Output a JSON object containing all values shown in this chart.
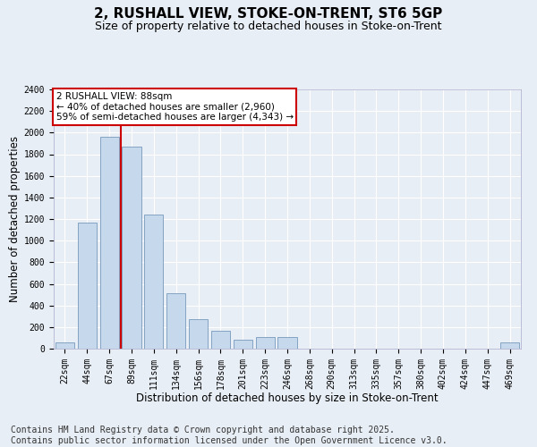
{
  "title1": "2, RUSHALL VIEW, STOKE-ON-TRENT, ST6 5GP",
  "title2": "Size of property relative to detached houses in Stoke-on-Trent",
  "xlabel": "Distribution of detached houses by size in Stoke-on-Trent",
  "ylabel": "Number of detached properties",
  "categories": [
    "22sqm",
    "44sqm",
    "67sqm",
    "89sqm",
    "111sqm",
    "134sqm",
    "156sqm",
    "178sqm",
    "201sqm",
    "223sqm",
    "246sqm",
    "268sqm",
    "290sqm",
    "313sqm",
    "335sqm",
    "357sqm",
    "380sqm",
    "402sqm",
    "424sqm",
    "447sqm",
    "469sqm"
  ],
  "values": [
    60,
    1170,
    1960,
    1870,
    1240,
    510,
    270,
    165,
    80,
    110,
    110,
    0,
    0,
    0,
    0,
    0,
    0,
    0,
    0,
    0,
    60
  ],
  "bar_color": "#c5d8ec",
  "bar_edge_color": "#7799bb",
  "vline_x_index": 3,
  "vline_color": "#cc0000",
  "annotation_text": "2 RUSHALL VIEW: 88sqm\n← 40% of detached houses are smaller (2,960)\n59% of semi-detached houses are larger (4,343) →",
  "annotation_box_color": "#ffffff",
  "annotation_box_edge": "#cc0000",
  "ylim": [
    0,
    2400
  ],
  "yticks": [
    0,
    200,
    400,
    600,
    800,
    1000,
    1200,
    1400,
    1600,
    1800,
    2000,
    2200,
    2400
  ],
  "background_color": "#e8eef5",
  "grid_color": "#ffffff",
  "footer1": "Contains HM Land Registry data © Crown copyright and database right 2025.",
  "footer2": "Contains public sector information licensed under the Open Government Licence v3.0.",
  "title1_fontsize": 11,
  "title2_fontsize": 9,
  "tick_fontsize": 7,
  "label_fontsize": 8.5,
  "footer_fontsize": 7,
  "annot_fontsize": 7.5
}
